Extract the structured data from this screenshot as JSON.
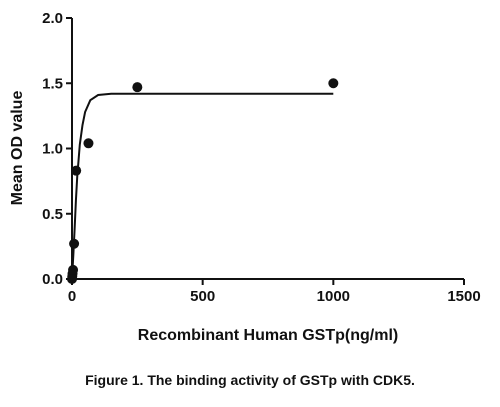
{
  "chart_data": {
    "type": "scatter",
    "title": "",
    "xlabel": "Recombinant Human GSTp(ng/ml)",
    "ylabel": "Mean OD value",
    "xlim": [
      0,
      1500
    ],
    "ylim": [
      0,
      2.0
    ],
    "x_ticks": [
      0,
      500,
      1000,
      1500
    ],
    "y_ticks": [
      0.0,
      0.5,
      1.0,
      1.5,
      2.0
    ],
    "x_tick_labels": [
      "0",
      "500",
      "1000",
      "1500"
    ],
    "y_tick_labels": [
      "0.0",
      "0.5",
      "1.0",
      "1.5",
      "2.0"
    ],
    "series": [
      {
        "type": "scatter",
        "points": [
          {
            "x": 0,
            "y": 0.0
          },
          {
            "x": 1,
            "y": 0.02
          },
          {
            "x": 2,
            "y": 0.04
          },
          {
            "x": 4,
            "y": 0.07
          },
          {
            "x": 8,
            "y": 0.27
          },
          {
            "x": 16,
            "y": 0.83
          },
          {
            "x": 63,
            "y": 1.04
          },
          {
            "x": 250,
            "y": 1.47
          },
          {
            "x": 1000,
            "y": 1.5
          }
        ]
      },
      {
        "type": "fit-curve",
        "points": [
          {
            "x": 0,
            "y": 0.0
          },
          {
            "x": 5,
            "y": 0.18
          },
          {
            "x": 10,
            "y": 0.38
          },
          {
            "x": 15,
            "y": 0.6
          },
          {
            "x": 20,
            "y": 0.78
          },
          {
            "x": 30,
            "y": 1.03
          },
          {
            "x": 40,
            "y": 1.18
          },
          {
            "x": 50,
            "y": 1.28
          },
          {
            "x": 70,
            "y": 1.37
          },
          {
            "x": 100,
            "y": 1.41
          },
          {
            "x": 150,
            "y": 1.42
          },
          {
            "x": 250,
            "y": 1.42
          },
          {
            "x": 500,
            "y": 1.42
          },
          {
            "x": 1000,
            "y": 1.42
          }
        ]
      }
    ]
  },
  "caption": "Figure 1. The binding activity of GSTp with CDK5."
}
